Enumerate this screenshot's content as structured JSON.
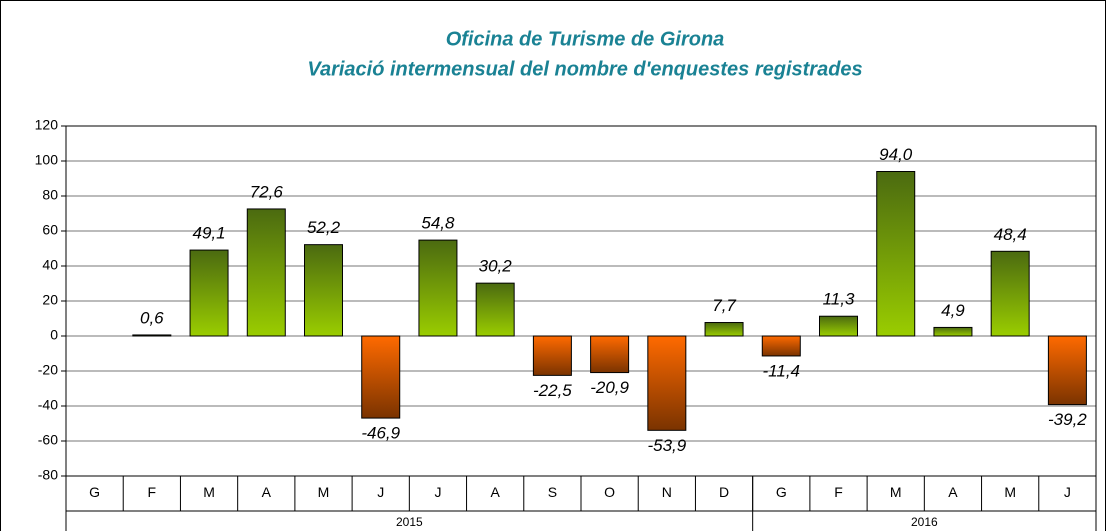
{
  "chart_data": {
    "type": "bar",
    "title": "Oficina de Turisme de Girona",
    "subtitle": "Variació intermensual del nombre d'enquestes registrades",
    "groups": [
      {
        "name": "2015",
        "categories": [
          "G",
          "F",
          "M",
          "A",
          "M",
          "J",
          "J",
          "A",
          "S",
          "O",
          "N",
          "D"
        ],
        "values": [
          null,
          0.6,
          49.1,
          72.6,
          52.2,
          -46.9,
          54.8,
          30.2,
          -22.5,
          -20.9,
          -53.9,
          7.7
        ],
        "value_labels": [
          null,
          "0,6",
          "49,1",
          "72,6",
          "52,2",
          "-46,9",
          "54,8",
          "30,2",
          "-22,5",
          "-20,9",
          "-53,9",
          "7,7"
        ]
      },
      {
        "name": "2016",
        "categories": [
          "G",
          "F",
          "M",
          "A",
          "M",
          "J"
        ],
        "values": [
          -11.4,
          11.3,
          94.0,
          4.9,
          48.4,
          -39.2
        ],
        "value_labels": [
          "-11,4",
          "11,3",
          "94,0",
          "4,9",
          "48,4",
          "-39,2"
        ]
      }
    ],
    "ylim": [
      -80,
      120
    ],
    "yticks": [
      -80,
      -60,
      -40,
      -20,
      0,
      20,
      40,
      60,
      80,
      100,
      120
    ],
    "grid": true,
    "colors": {
      "positive": [
        "#4b6a10",
        "#9acd00"
      ],
      "negative": [
        "#ff6a00",
        "#7a3300"
      ]
    }
  }
}
